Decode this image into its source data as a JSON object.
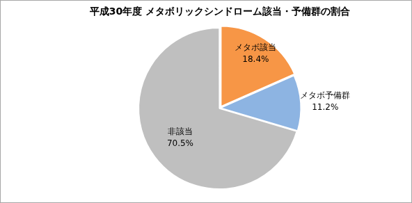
{
  "chart_data": {
    "type": "pie",
    "title": "平成30年度 メタボリックシンドローム該当・予備群の割合",
    "categories": [
      "メタボ該当",
      "メタボ予備群",
      "非該当"
    ],
    "values": [
      18.4,
      11.2,
      70.5
    ],
    "value_labels": [
      "18.4%",
      "11.2%",
      "70.5%"
    ],
    "colors": [
      "#f79646",
      "#8db4e2",
      "#bfbfbf"
    ],
    "data_labels": true
  }
}
